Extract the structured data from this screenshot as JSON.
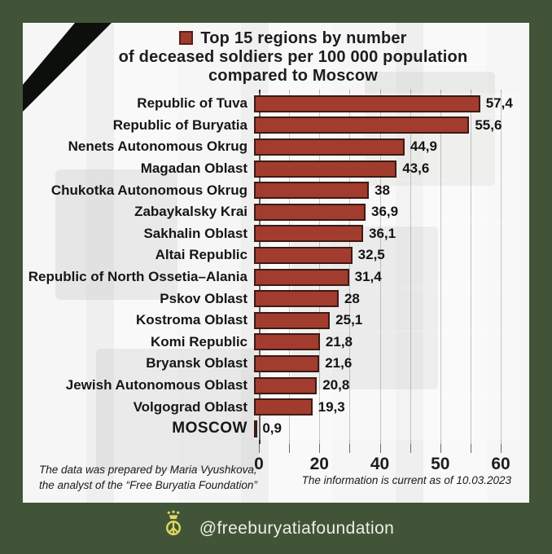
{
  "header": {
    "title_line1": "Top 15 regions by number",
    "title_line2": "of deceased soldiers per 100 000 population",
    "title_line3": "compared to Moscow"
  },
  "chart_data": {
    "type": "bar",
    "orientation": "horizontal",
    "title": "Top 15 regions by number of deceased soldiers per 100 000 population compared to Moscow",
    "categories": [
      "Republic of Tuva",
      "Republic of Buryatia",
      "Nenets Autonomous Okrug",
      "Magadan Oblast",
      "Chukotka Autonomous Okrug",
      "Zabaykalsky Krai",
      "Sakhalin Oblast",
      "Altai Republic",
      "Republic of North Ossetia–Alania",
      "Pskov Oblast",
      "Kostroma Oblast",
      "Komi Republic",
      "Bryansk Oblast",
      "Jewish Autonomous Oblast",
      "Volgograd Oblast",
      "MOSCOW"
    ],
    "values": [
      57.4,
      55.6,
      44.9,
      43.6,
      38,
      36.9,
      36.1,
      32.5,
      31.4,
      28,
      25.1,
      21.8,
      21.6,
      20.8,
      19.3,
      0.9
    ],
    "value_labels": [
      "57,4",
      "55,6",
      "44,9",
      "43,6",
      "38",
      "36,9",
      "36,1",
      "32,5",
      "31,4",
      "28",
      "25,1",
      "21,8",
      "21,6",
      "20,8",
      "19,3",
      "0,9"
    ],
    "moscow_index": 15,
    "xlabel": "",
    "ylabel": "",
    "xlim": [
      0,
      60
    ],
    "xticks": {
      "labels": [
        "0",
        "20",
        "40",
        "50",
        "60"
      ],
      "values": [
        0,
        20,
        40,
        50,
        60
      ],
      "labeled_gridline_indices": [
        0,
        2,
        4,
        6,
        8
      ],
      "gridline_count": 9,
      "note": "gridlines equally spaced; axis is piecewise (0-40 then 40-60)"
    },
    "grid": "vertical",
    "legend": "none",
    "bar_color": "#a23c2e",
    "bar_border_color": "#3c1b14"
  },
  "footer": {
    "credit_line1": "The data was prepared by Maria Vyushkova,",
    "credit_line2": "the analyst of the “Free Buryatia Foundation”",
    "current_as_of": "The information is current as of 10.03.2023"
  },
  "bottom_bar": {
    "handle": "@freeburyatiafoundation",
    "emblem_color": "#dcd75f",
    "background_color": "#415438"
  },
  "decor": {
    "mourning_ribbon_color": "#0c0f0c",
    "frame_color": "#415438"
  }
}
